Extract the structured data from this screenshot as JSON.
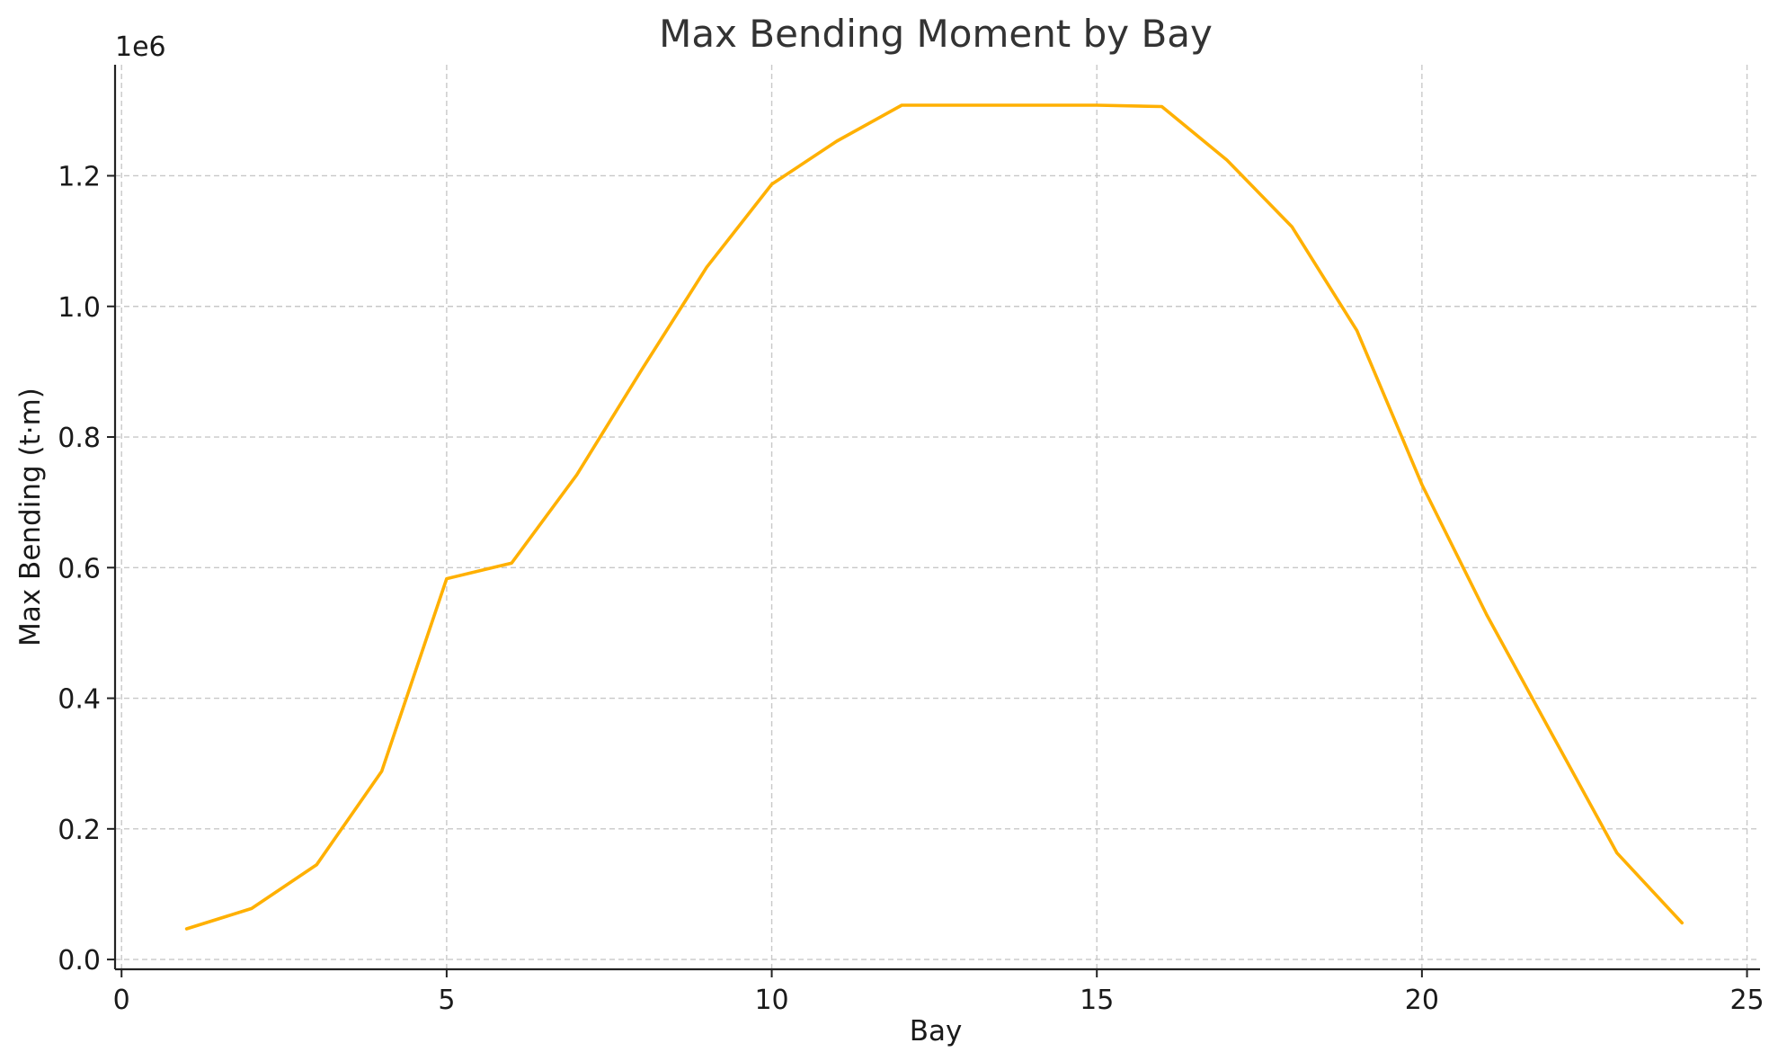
{
  "chart_data": {
    "type": "line",
    "title": "Max Bending Moment by Bay",
    "xlabel": "Bay",
    "ylabel": "Max Bending (t·m)",
    "y_offset_label": "1e6",
    "xlim": [
      -0.1,
      25.2
    ],
    "ylim": [
      -0.015,
      1.37
    ],
    "x_ticks": [
      0,
      5,
      10,
      15,
      20,
      25
    ],
    "x_tick_labels": [
      "0",
      "5",
      "10",
      "15",
      "20",
      "25"
    ],
    "y_ticks": [
      0.0,
      0.2,
      0.4,
      0.6,
      0.8,
      1.0,
      1.2
    ],
    "y_tick_labels": [
      "0.0",
      "0.2",
      "0.4",
      "0.6",
      "0.8",
      "1.0",
      "1.2"
    ],
    "grid": true,
    "line_color": "#FFB000",
    "series": [
      {
        "x": [
          1,
          2,
          3,
          4,
          5,
          6,
          7,
          8,
          9,
          10,
          11,
          12,
          13,
          14,
          15,
          16,
          17,
          18,
          19,
          20,
          21,
          22,
          23,
          24
        ],
        "values": [
          0.047,
          0.078,
          0.145,
          0.288,
          0.583,
          0.607,
          0.742,
          0.903,
          1.06,
          1.187,
          1.253,
          1.308,
          1.308,
          1.308,
          1.308,
          1.306,
          1.224,
          1.122,
          0.963,
          0.727,
          0.527,
          0.345,
          0.163,
          0.056
        ]
      }
    ]
  }
}
